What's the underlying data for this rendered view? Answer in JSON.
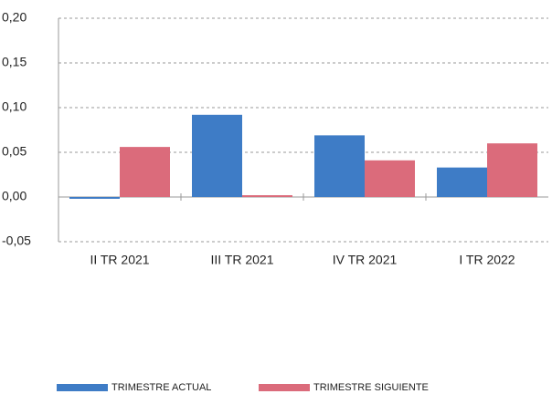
{
  "chart_data": {
    "type": "bar",
    "categories": [
      "II TR 2021",
      "III TR 2021",
      "IV TR 2021",
      "I TR 2022"
    ],
    "series": [
      {
        "name": "TRIMESTRE ACTUAL",
        "color": "#3e7cc6",
        "values": [
          -0.002,
          0.092,
          0.069,
          0.033
        ]
      },
      {
        "name": "TRIMESTRE SIGUIENTE",
        "color": "#db6b7b",
        "values": [
          0.056,
          0.002,
          0.041,
          0.06
        ]
      }
    ],
    "ylim": [
      -0.05,
      0.2
    ],
    "yticks": [
      {
        "value": -0.05,
        "label": "-0,05"
      },
      {
        "value": 0,
        "label": "0,00"
      },
      {
        "value": 0.05,
        "label": "0,05"
      },
      {
        "value": 0.1,
        "label": "0,10"
      },
      {
        "value": 0.15,
        "label": "0,15"
      },
      {
        "value": 0.2,
        "label": "0,20"
      }
    ],
    "grid": true
  }
}
